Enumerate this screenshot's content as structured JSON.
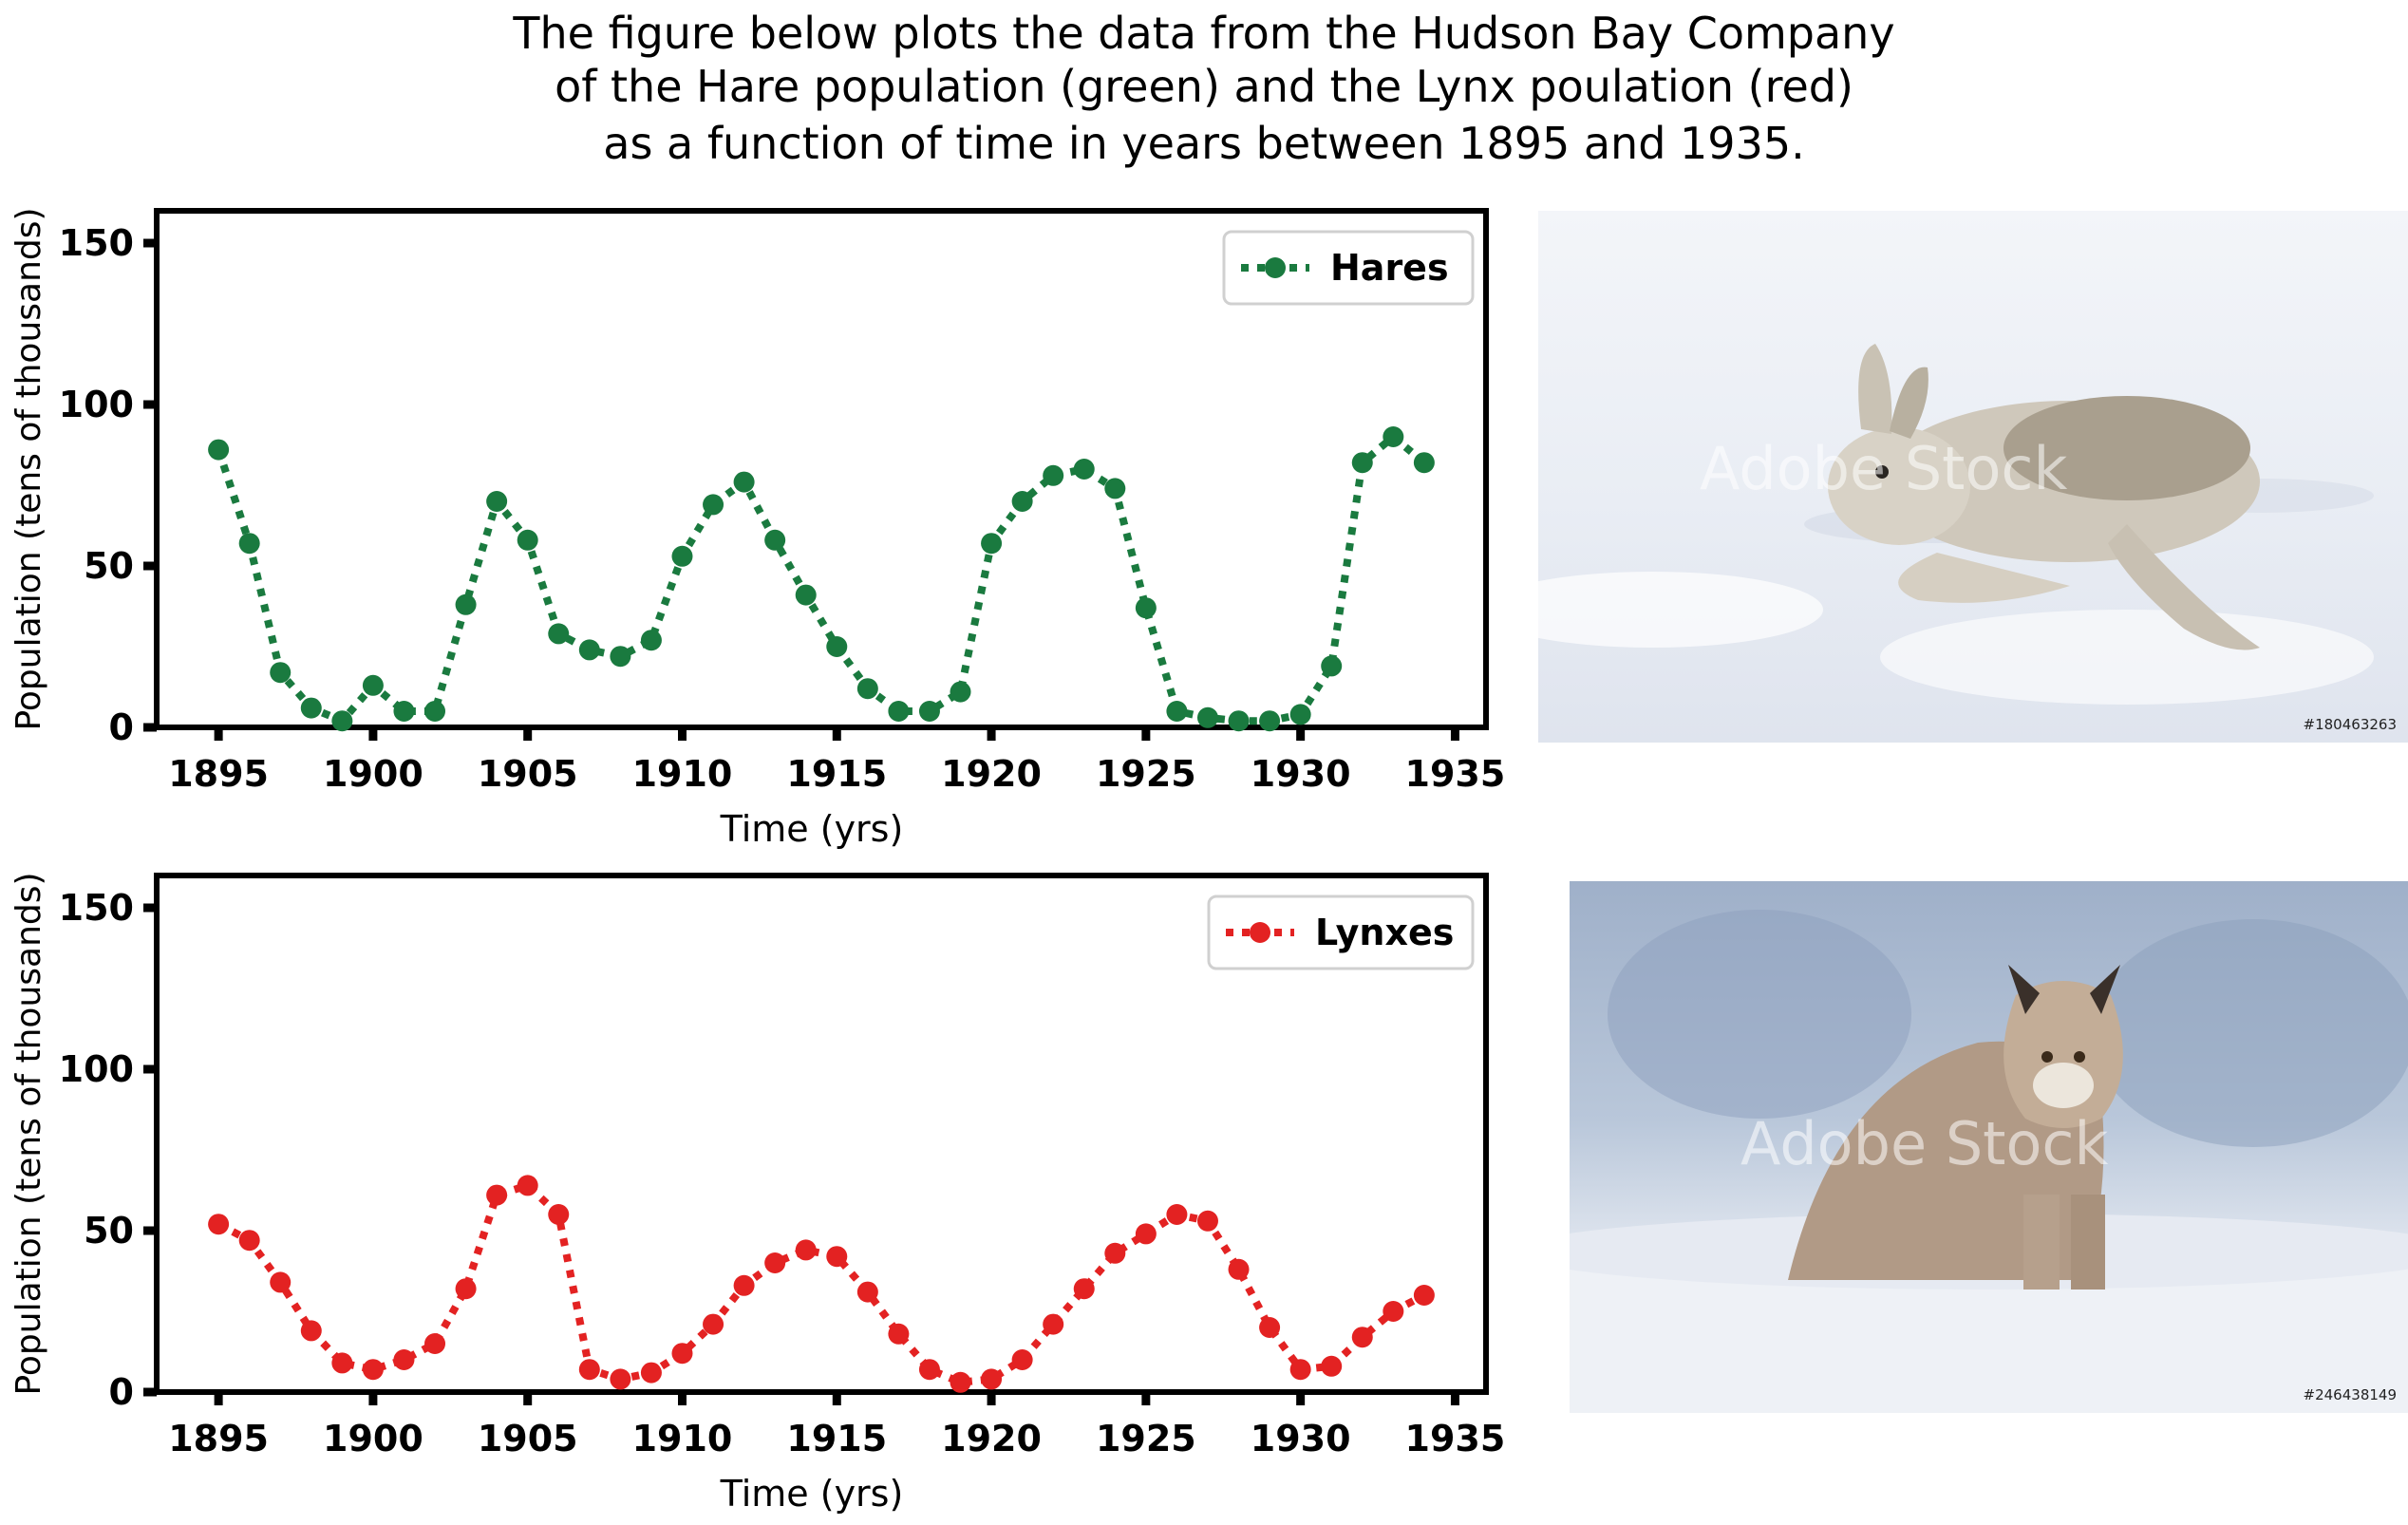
{
  "caption": {
    "line1": "The figure below plots the data from the Hudson Bay Company",
    "line2": "of the Hare population (green) and the Lynx poulation (red)",
    "line3": "as a function of time in years between 1895 and 1935."
  },
  "chart_data": [
    {
      "type": "line",
      "title": "",
      "xlabel": "Time (yrs)",
      "ylabel": "Population (tens of thousands)",
      "xlim": [
        1893,
        1936
      ],
      "ylim": [
        0,
        160
      ],
      "xticks": [
        1895,
        1900,
        1905,
        1910,
        1915,
        1920,
        1925,
        1930,
        1935
      ],
      "yticks": [
        0,
        50,
        100,
        150
      ],
      "grid": false,
      "legend": "top-right",
      "series": [
        {
          "name": "Hares",
          "color": "#1a7a3f",
          "line_style": "dotted",
          "marker": "circle",
          "x": [
            1895,
            1896,
            1897,
            1898,
            1899,
            1900,
            1901,
            1902,
            1903,
            1904,
            1905,
            1906,
            1907,
            1908,
            1909,
            1910,
            1911,
            1912,
            1913,
            1914,
            1915,
            1916,
            1917,
            1918,
            1919,
            1920,
            1921,
            1922,
            1923,
            1924,
            1925,
            1926,
            1927,
            1928,
            1929,
            1930,
            1931,
            1932,
            1933,
            1934
          ],
          "y": [
            86,
            57,
            17,
            6,
            2,
            13,
            5,
            5,
            38,
            70,
            58,
            29,
            24,
            22,
            27,
            53,
            69,
            76,
            58,
            41,
            25,
            12,
            5,
            5,
            11,
            57,
            70,
            78,
            80,
            74,
            37,
            5,
            3,
            2,
            2,
            4,
            19,
            82,
            90,
            82
          ]
        }
      ]
    },
    {
      "type": "line",
      "title": "",
      "xlabel": "Time (yrs)",
      "ylabel": "Population (tens of thousands)",
      "xlim": [
        1893,
        1936
      ],
      "ylim": [
        0,
        160
      ],
      "xticks": [
        1895,
        1900,
        1905,
        1910,
        1915,
        1920,
        1925,
        1930,
        1935
      ],
      "yticks": [
        0,
        50,
        100,
        150
      ],
      "grid": false,
      "legend": "top-right",
      "series": [
        {
          "name": "Lynxes",
          "color": "#e32222",
          "line_style": "dotted",
          "marker": "circle",
          "x": [
            1895,
            1896,
            1897,
            1898,
            1899,
            1900,
            1901,
            1902,
            1903,
            1904,
            1905,
            1906,
            1907,
            1908,
            1909,
            1910,
            1911,
            1912,
            1913,
            1914,
            1915,
            1916,
            1917,
            1918,
            1919,
            1920,
            1921,
            1922,
            1923,
            1924,
            1925,
            1926,
            1927,
            1928,
            1929,
            1930,
            1931,
            1932,
            1933,
            1934
          ],
          "y": [
            52,
            47,
            34,
            19,
            9,
            7,
            10,
            15,
            32,
            61,
            64,
            55,
            7,
            4,
            6,
            12,
            21,
            33,
            40,
            44,
            42,
            31,
            18,
            7,
            3,
            4,
            10,
            21,
            32,
            43,
            49,
            55,
            53,
            38,
            20,
            7,
            8,
            17,
            25,
            30
          ]
        }
      ]
    }
  ],
  "photos": [
    {
      "subject": "snowshoe hare running on snow",
      "watermark": "Adobe Stock",
      "stock_id": "#180463263"
    },
    {
      "subject": "lynx walking through snow",
      "watermark": "Adobe Stock",
      "stock_id": "#246438149"
    }
  ]
}
